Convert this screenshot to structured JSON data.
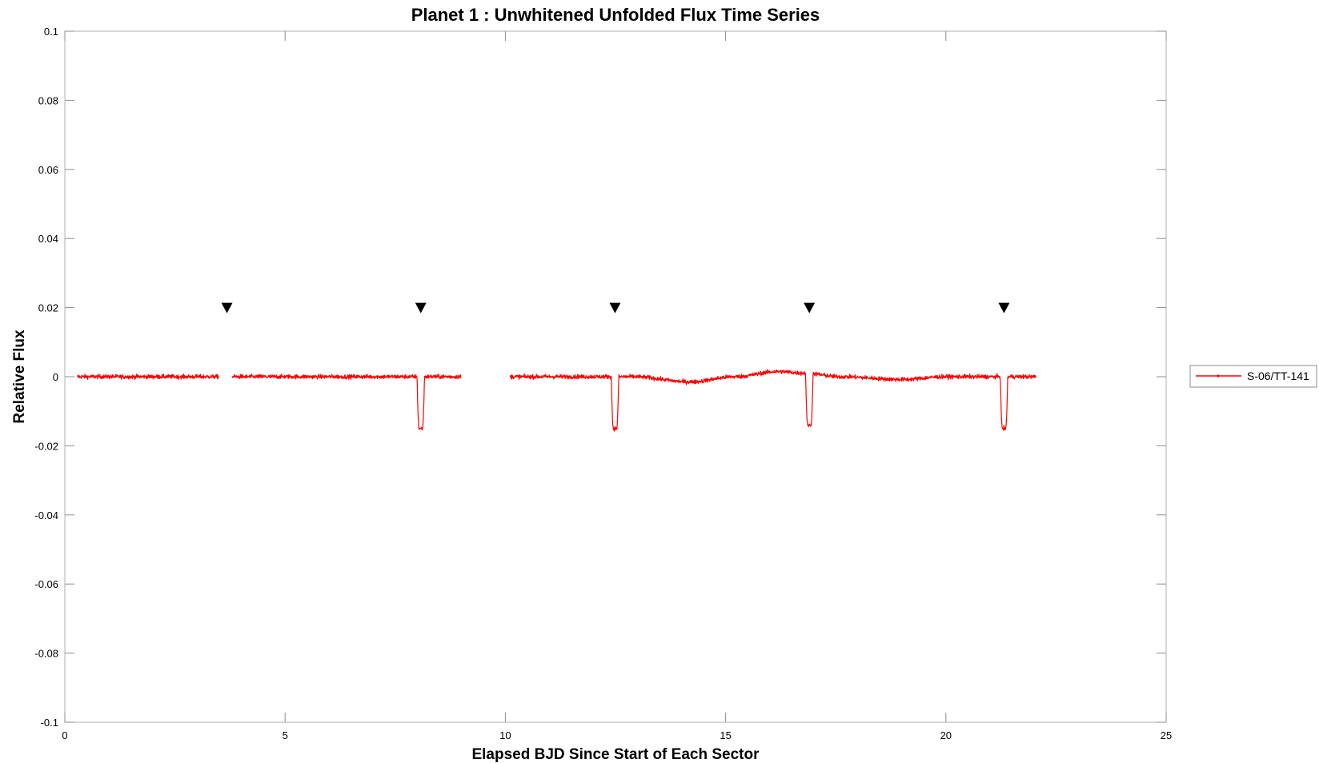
{
  "chart_data": {
    "type": "line",
    "title": "Planet 1 : Unwhitened Unfolded Flux Time Series",
    "xlabel": "Elapsed BJD Since Start of Each Sector",
    "ylabel": "Relative Flux",
    "xlim": [
      0,
      25
    ],
    "ylim": [
      -0.1,
      0.1
    ],
    "xticks": [
      0,
      5,
      10,
      15,
      20,
      25
    ],
    "xtick_labels": [
      "0",
      "5",
      "10",
      "15",
      "20",
      "25"
    ],
    "yticks": [
      -0.1,
      -0.08,
      -0.06,
      -0.04,
      -0.02,
      0,
      0.02,
      0.04,
      0.06,
      0.08,
      0.1
    ],
    "ytick_labels": [
      "-0.1",
      "-0.08",
      "-0.06",
      "-0.04",
      "-0.02",
      "0",
      "0.02",
      "0.04",
      "0.06",
      "0.08",
      "0.1"
    ],
    "grid": false,
    "legend_position": "outside-right",
    "series": [
      {
        "name": "S-06/TT-141",
        "color": "#ff0000",
        "segments": [
          [
            0.28,
            3.5
          ],
          [
            3.8,
            9.0
          ],
          [
            10.1,
            22.05
          ]
        ],
        "noise_amplitude": 0.0012,
        "transits": [
          {
            "x": 8.08,
            "depth": -0.015
          },
          {
            "x": 12.49,
            "depth": -0.015
          },
          {
            "x": 16.9,
            "depth": -0.015
          },
          {
            "x": 21.32,
            "depth": -0.015
          }
        ],
        "trend": [
          {
            "x": 12.9,
            "y": 0.0
          },
          {
            "x": 14.2,
            "y": -0.0015
          },
          {
            "x": 15.2,
            "y": 0.0
          },
          {
            "x": 16.2,
            "y": 0.0015
          },
          {
            "x": 16.8,
            "y": 0.001
          },
          {
            "x": 17.6,
            "y": 0.0
          },
          {
            "x": 19.0,
            "y": -0.0008
          },
          {
            "x": 20.0,
            "y": 0.0
          }
        ]
      }
    ],
    "markers": {
      "shape": "triangle-down",
      "color": "#000000",
      "y": 0.02,
      "x": [
        3.68,
        8.08,
        12.49,
        16.9,
        21.32
      ]
    }
  }
}
